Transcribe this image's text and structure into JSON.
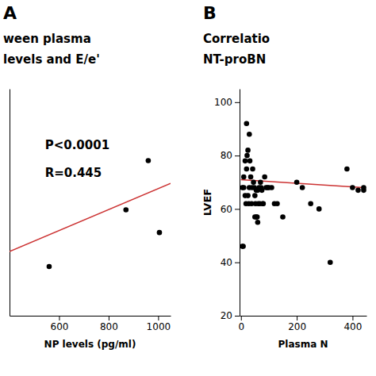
{
  "chart_data": [
    {
      "type": "scatter",
      "label": "A",
      "title": [
        "ween plasma",
        "levels and E/e'"
      ],
      "annotations": [
        "P<0.0001",
        "R=0.445"
      ],
      "x_label": "NP levels (pg/ml)",
      "xlim": [
        400,
        1050
      ],
      "xticks": [
        600,
        800,
        1000
      ],
      "ylim": [
        3.5,
        9.5
      ],
      "yticks": [],
      "tick_labels": "x",
      "series": [
        {
          "type": "scatter",
          "color": "#000000",
          "x": [
            560,
            870,
            960,
            1005
          ],
          "values": [
            4.8,
            6.3,
            7.6,
            5.7
          ]
        },
        {
          "type": "line",
          "color": "#cc3333",
          "x": [
            400,
            1050
          ],
          "values": [
            5.2,
            7.0
          ]
        }
      ]
    },
    {
      "type": "scatter",
      "label": "B",
      "title": [
        "Correlatio",
        "NT-proBN"
      ],
      "x_label": "Plasma N",
      "y_label": "LVEF",
      "xlim": [
        -5,
        450
      ],
      "xticks": [
        0,
        200,
        400
      ],
      "ylim": [
        20,
        105
      ],
      "yticks": [
        20,
        40,
        60,
        80,
        100
      ],
      "series": [
        {
          "type": "scatter",
          "color": "#000000",
          "x": [
            5,
            5,
            8,
            10,
            10,
            15,
            15,
            18,
            20,
            20,
            22,
            25,
            25,
            28,
            30,
            30,
            32,
            35,
            38,
            40,
            42,
            45,
            48,
            50,
            50,
            52,
            55,
            55,
            58,
            60,
            60,
            62,
            65,
            68,
            70,
            72,
            75,
            78,
            80,
            85,
            90,
            95,
            100,
            110,
            120,
            130,
            150,
            200,
            220,
            250,
            280,
            320,
            380,
            400,
            420,
            440,
            440
          ],
          "values": [
            68,
            46,
            46,
            72,
            68,
            78,
            65,
            62,
            92,
            75,
            80,
            82,
            65,
            62,
            88,
            68,
            78,
            72,
            62,
            68,
            75,
            70,
            68,
            57,
            65,
            62,
            67,
            57,
            57,
            55,
            67,
            62,
            68,
            62,
            70,
            68,
            67,
            62,
            62,
            72,
            68,
            68,
            68,
            68,
            62,
            62,
            57,
            70,
            68,
            62,
            60,
            40,
            75,
            68,
            67,
            67,
            68
          ]
        },
        {
          "type": "line",
          "color": "#cc3333",
          "x": [
            0,
            440
          ],
          "values": [
            71,
            68
          ]
        }
      ]
    }
  ]
}
